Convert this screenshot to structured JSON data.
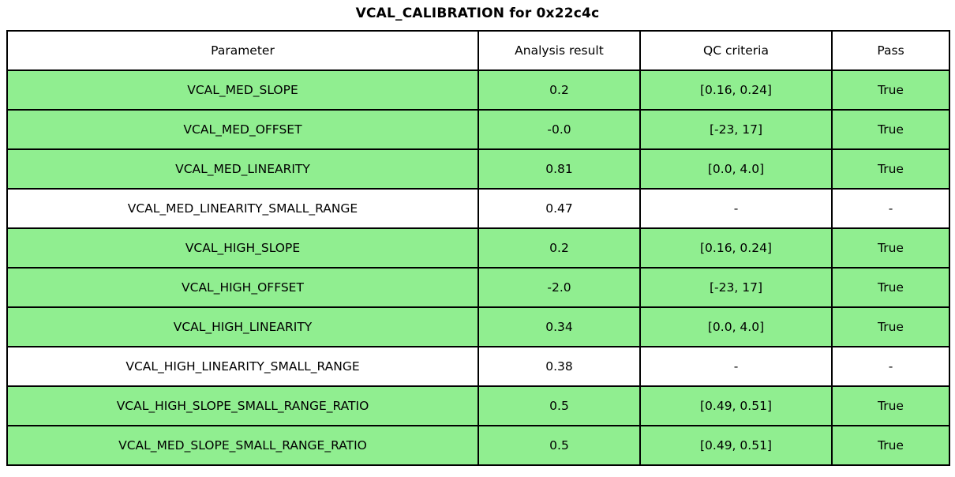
{
  "chart_data": {
    "type": "table",
    "title": "VCAL_CALIBRATION for 0x22c4c",
    "columns": [
      "Parameter",
      "Analysis result",
      "QC criteria",
      "Pass"
    ],
    "rows": [
      {
        "cells": [
          "VCAL_MED_SLOPE",
          "0.2",
          "[0.16, 0.24]",
          "True"
        ],
        "pass_highlight": true
      },
      {
        "cells": [
          "VCAL_MED_OFFSET",
          "-0.0",
          "[-23, 17]",
          "True"
        ],
        "pass_highlight": true
      },
      {
        "cells": [
          "VCAL_MED_LINEARITY",
          "0.81",
          "[0.0, 4.0]",
          "True"
        ],
        "pass_highlight": true
      },
      {
        "cells": [
          "VCAL_MED_LINEARITY_SMALL_RANGE",
          "0.47",
          "-",
          "-"
        ],
        "pass_highlight": false
      },
      {
        "cells": [
          "VCAL_HIGH_SLOPE",
          "0.2",
          "[0.16, 0.24]",
          "True"
        ],
        "pass_highlight": true
      },
      {
        "cells": [
          "VCAL_HIGH_OFFSET",
          "-2.0",
          "[-23, 17]",
          "True"
        ],
        "pass_highlight": true
      },
      {
        "cells": [
          "VCAL_HIGH_LINEARITY",
          "0.34",
          "[0.0, 4.0]",
          "True"
        ],
        "pass_highlight": true
      },
      {
        "cells": [
          "VCAL_HIGH_LINEARITY_SMALL_RANGE",
          "0.38",
          "-",
          "-"
        ],
        "pass_highlight": false
      },
      {
        "cells": [
          "VCAL_HIGH_SLOPE_SMALL_RANGE_RATIO",
          "0.5",
          "[0.49, 0.51]",
          "True"
        ],
        "pass_highlight": true
      },
      {
        "cells": [
          "VCAL_MED_SLOPE_SMALL_RANGE_RATIO",
          "0.5",
          "[0.49, 0.51]",
          "True"
        ],
        "pass_highlight": true
      }
    ],
    "layout_hints": {
      "header_background": "#ffffff",
      "grid": "on"
    }
  },
  "colors": {
    "pass_row_bg": "#90ee90",
    "neutral_row_bg": "#ffffff",
    "border": "#000000",
    "text": "#000000",
    "background": "#ffffff"
  }
}
